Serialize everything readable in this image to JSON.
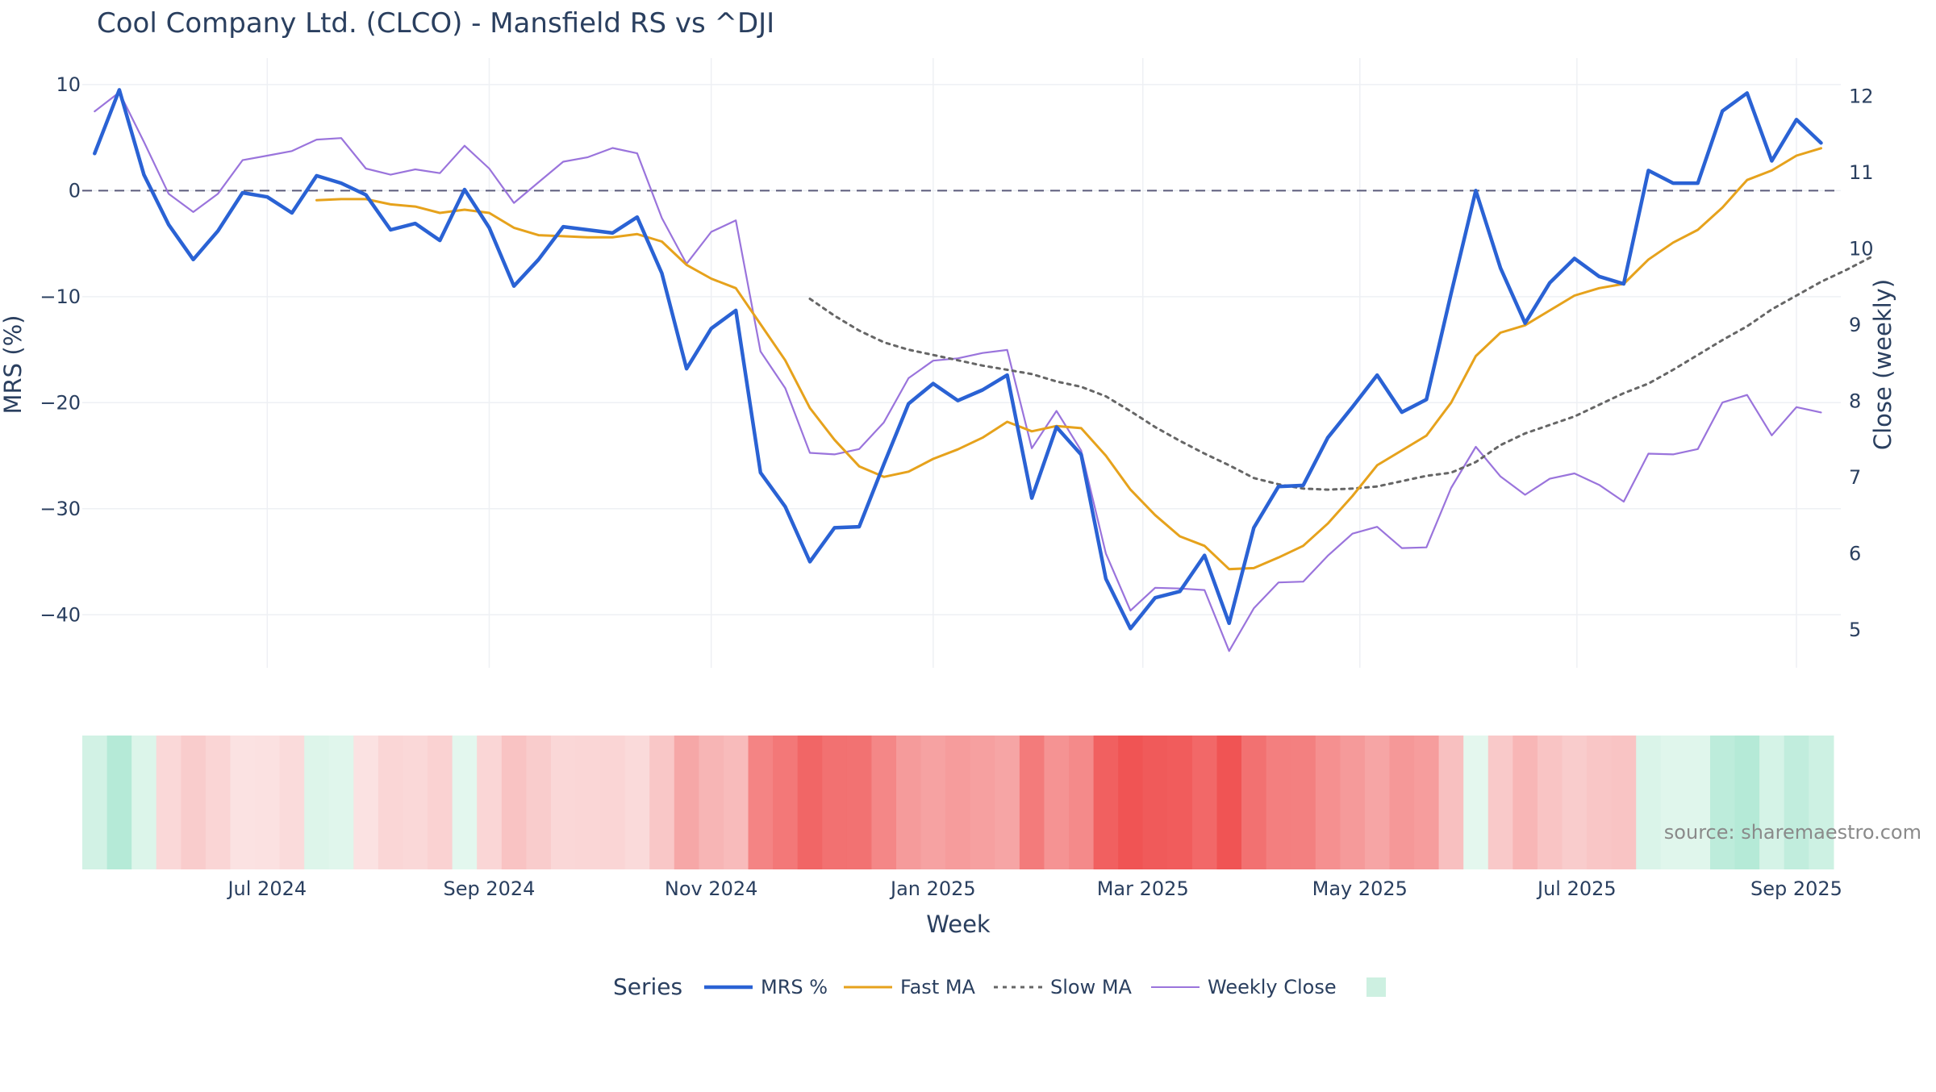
{
  "chart_data": {
    "type": "line",
    "title": "Cool Company Ltd. (CLCO) - Mansfield RS vs ^DJI",
    "xlabel": "Week",
    "ylabel_left": "MRS (%)",
    "ylabel_right": "Close (weekly)",
    "ylim_left": [
      -45,
      12.5
    ],
    "ylim_right": [
      4.5,
      12.5
    ],
    "y_ticks_left": [
      10,
      0,
      -10,
      -20,
      -30,
      -40
    ],
    "y_tick_labels_left": [
      "10",
      "0",
      "−10",
      "−20",
      "−30",
      "−40"
    ],
    "y_ticks_right": [
      12,
      11,
      10,
      9,
      8,
      7,
      6,
      5
    ],
    "y_tick_labels_right": [
      "12",
      "11",
      "10",
      "9",
      "8",
      "7",
      "6",
      "5"
    ],
    "x_ticks": [
      7,
      16,
      25,
      34,
      42.5,
      51.3,
      60.1,
      69
    ],
    "x_tick_labels": [
      "Jul 2024",
      "Sep 2024",
      "Nov 2024",
      "Jan 2025",
      "Mar 2025",
      "May 2025",
      "Jul 2025",
      "Sep 2025"
    ],
    "x_range": [
      -0.5,
      70.8
    ],
    "zero_line": 0,
    "grid": true,
    "legend": {
      "title": "Series",
      "placement": "bottom-center",
      "entries": [
        "MRS %",
        "Fast MA",
        "Slow MA",
        "Weekly Close"
      ]
    },
    "source_note": "source: sharemaestro.com",
    "colors": {
      "mrs": "#2a62d4",
      "fast_ma": "#e6a21c",
      "slow_ma": "#666666",
      "weekly_close": "#9a74dc",
      "zero_line": "#5a5a7a",
      "grid": "#eef0f4",
      "heat_positive": "#b5ead7",
      "heat_negative": "#f05454"
    },
    "series": [
      {
        "name": "MRS %",
        "axis": "left",
        "x_start": 0,
        "values": [
          3.5,
          9.5,
          1.5,
          -3.2,
          -6.5,
          -3.8,
          -0.2,
          -0.6,
          -2.1,
          1.4,
          0.7,
          -0.4,
          -3.7,
          -3.1,
          -4.7,
          0.1,
          -3.5,
          -9.0,
          -6.5,
          -3.4,
          -3.7,
          -4.0,
          -2.5,
          -7.8,
          -16.8,
          -13.0,
          -11.3,
          -26.6,
          -29.8,
          -35.0,
          -31.8,
          -31.7,
          -25.8,
          -20.1,
          -18.2,
          -19.8,
          -18.8,
          -17.4,
          -29.0,
          -22.3,
          -24.9,
          -36.6,
          -41.3,
          -38.4,
          -37.8,
          -34.4,
          -40.8,
          -31.8,
          -27.9,
          -27.8,
          -23.3,
          -20.4,
          -17.4,
          -20.9,
          -19.7,
          -9.7,
          0.0,
          -7.3,
          -12.5,
          -8.7,
          -6.4,
          -8.1,
          -8.8,
          1.9,
          0.7,
          0.7,
          7.5,
          9.2,
          2.8,
          6.7,
          4.5
        ]
      },
      {
        "name": "Fast MA",
        "axis": "left",
        "x_start": 9,
        "values": [
          -0.9,
          -0.8,
          -0.8,
          -1.3,
          -1.5,
          -2.1,
          -1.8,
          -2.1,
          -3.5,
          -4.2,
          -4.3,
          -4.4,
          -4.4,
          -4.1,
          -4.8,
          -7.0,
          -8.3,
          -9.2,
          -12.6,
          -16.0,
          -20.5,
          -23.5,
          -26.0,
          -27.0,
          -26.5,
          -25.3,
          -24.4,
          -23.3,
          -21.8,
          -22.7,
          -22.2,
          -22.4,
          -25.0,
          -28.2,
          -30.6,
          -32.6,
          -33.5,
          -35.7,
          -35.6,
          -34.6,
          -33.5,
          -31.4,
          -28.8,
          -25.9,
          -24.5,
          -23.1,
          -20.0,
          -15.6,
          -13.4,
          -12.7,
          -11.3,
          -9.9,
          -9.2,
          -8.8,
          -6.5,
          -4.9,
          -3.7,
          -1.6,
          1.0,
          1.9,
          3.3,
          4.0
        ]
      },
      {
        "name": "Slow MA",
        "axis": "left",
        "x_start": 29,
        "values": [
          -10.2,
          -11.8,
          -13.2,
          -14.3,
          -15.0,
          -15.5,
          -16.0,
          -16.5,
          -16.9,
          -17.3,
          -18.0,
          -18.5,
          -19.4,
          -20.8,
          -22.3,
          -23.6,
          -24.8,
          -25.9,
          -27.1,
          -27.7,
          -28.1,
          -28.2,
          -28.1,
          -27.9,
          -27.4,
          -26.9,
          -26.6,
          -25.6,
          -24.0,
          -22.9,
          -22.1,
          -21.3,
          -20.2,
          -19.1,
          -18.2,
          -16.9,
          -15.5,
          -14.1,
          -12.8,
          -11.2,
          -9.9,
          -8.6,
          -7.5,
          -6.3
        ]
      },
      {
        "name": "Weekly Close",
        "axis": "right",
        "x_start": 0,
        "values": [
          11.8,
          12.05,
          11.4,
          10.72,
          10.48,
          10.72,
          11.16,
          11.22,
          11.28,
          11.43,
          11.45,
          11.05,
          10.97,
          11.04,
          10.99,
          11.35,
          11.05,
          10.6,
          10.87,
          11.14,
          11.2,
          11.32,
          11.25,
          10.4,
          9.8,
          10.22,
          10.37,
          8.65,
          8.17,
          7.32,
          7.3,
          7.37,
          7.72,
          8.3,
          8.53,
          8.56,
          8.63,
          8.67,
          7.38,
          7.87,
          7.35,
          6.0,
          5.25,
          5.55,
          5.54,
          5.52,
          4.72,
          5.28,
          5.62,
          5.63,
          5.97,
          6.26,
          6.35,
          6.07,
          6.08,
          6.86,
          7.4,
          7.01,
          6.77,
          6.98,
          7.05,
          6.9,
          6.68,
          7.31,
          7.3,
          7.37,
          7.98,
          8.08,
          7.55,
          7.92,
          7.85
        ]
      }
    ],
    "heat_strip": {
      "description_note": "",
      "values": [
        3.5,
        9.5,
        1.5,
        -3.2,
        -6.5,
        -3.8,
        -0.2,
        -0.6,
        -2.1,
        1.4,
        0.7,
        -0.4,
        -3.7,
        -3.1,
        -4.7,
        0.1,
        -3.5,
        -9.0,
        -6.5,
        -3.4,
        -3.7,
        -4.0,
        -2.5,
        -7.8,
        -16.8,
        -13.0,
        -11.3,
        -26.6,
        -29.8,
        -35.0,
        -31.8,
        -31.7,
        -25.8,
        -20.1,
        -18.2,
        -19.8,
        -18.8,
        -17.4,
        -29.0,
        -22.3,
        -24.9,
        -36.6,
        -41.3,
        -38.4,
        -37.8,
        -34.4,
        -40.8,
        -31.8,
        -27.9,
        -27.8,
        -23.3,
        -20.4,
        -17.4,
        -20.9,
        -19.7,
        -9.7,
        0.0,
        -7.3,
        -12.5,
        -8.7,
        -6.4,
        -8.1,
        -8.8,
        1.9,
        0.7,
        0.7,
        7.5,
        9.2,
        2.8,
        6.7,
        4.5
      ]
    }
  }
}
